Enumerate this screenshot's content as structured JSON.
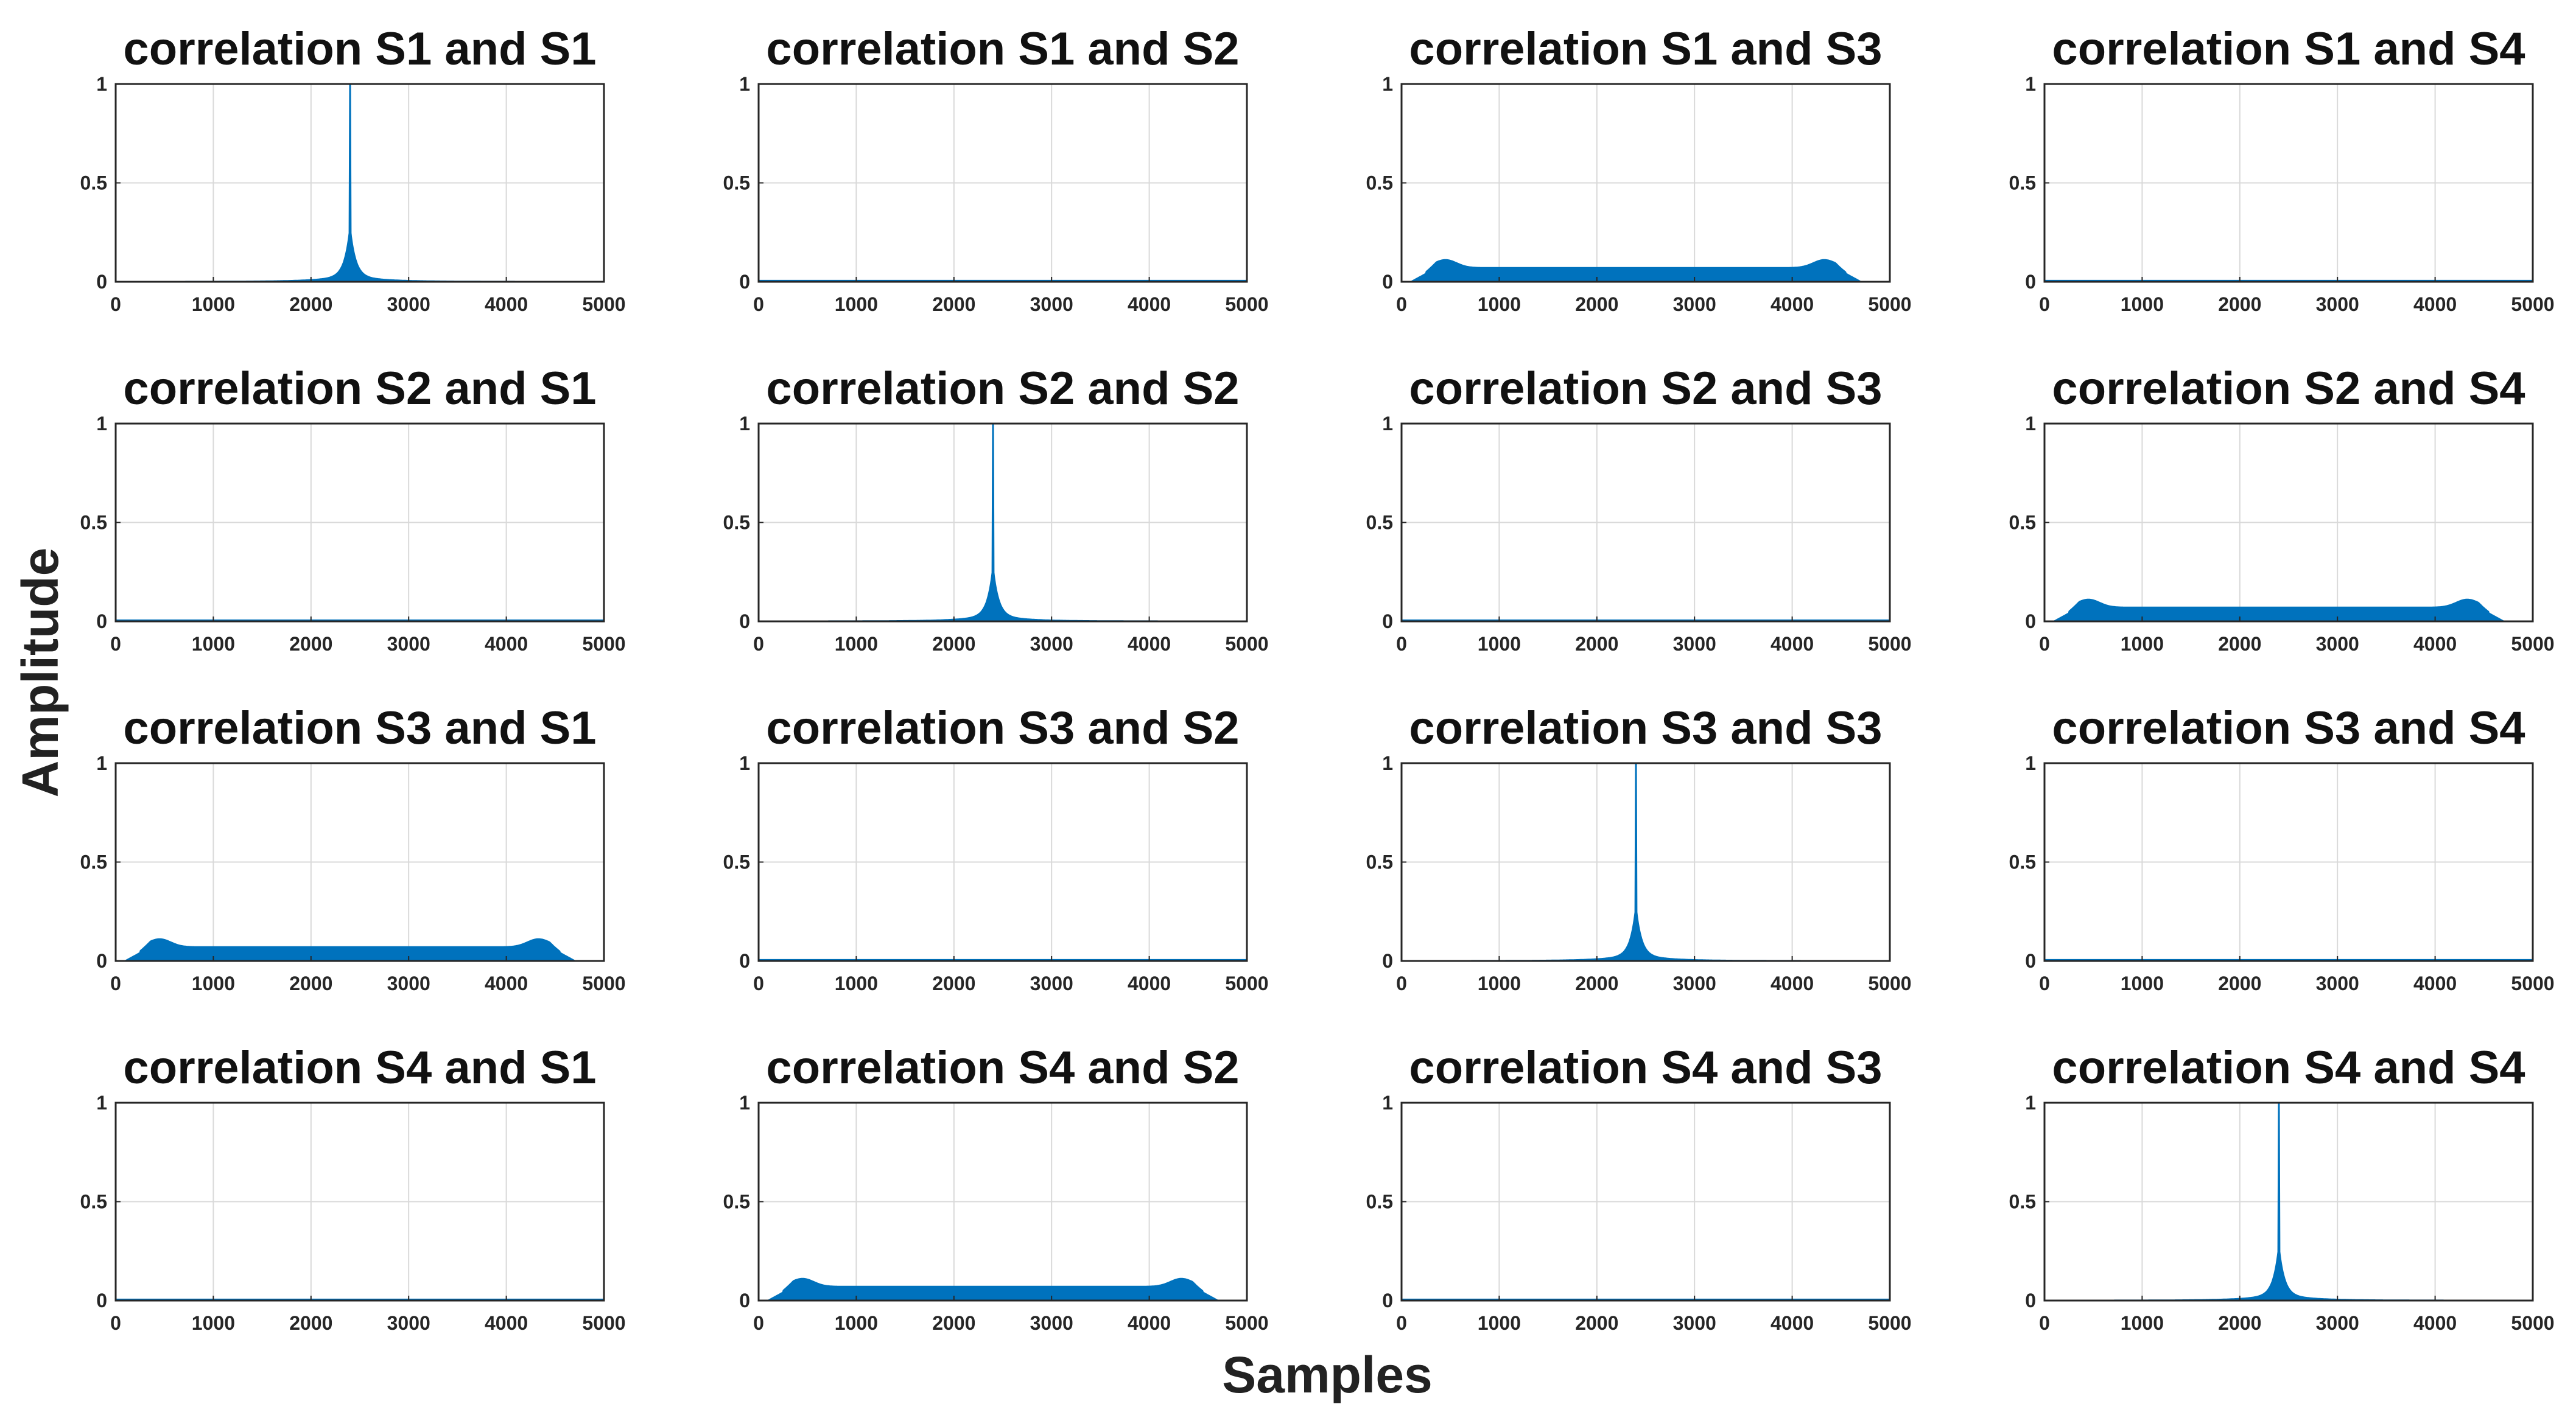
{
  "figure": {
    "ylabel": "Amplitude",
    "xlabel": "Samples",
    "series_color": "#0072BD",
    "grid_color": "#d9d9d9"
  },
  "chart_data": [
    {
      "type": "line",
      "row": 1,
      "col": 1,
      "title": "correlation S1 and S1",
      "shape": "peak",
      "peak_x": 2400,
      "peak_y": 1.0,
      "xlim": [
        0,
        5000
      ],
      "ylim": [
        0,
        1
      ],
      "xticks": [
        "0",
        "1000",
        "2000",
        "3000",
        "4000",
        "5000"
      ],
      "yticks": [
        "0",
        "0.5",
        "1"
      ],
      "grid": true
    },
    {
      "type": "line",
      "row": 1,
      "col": 2,
      "title": "correlation S1 and S2",
      "shape": "flat",
      "level": 0.005,
      "xlim": [
        0,
        5000
      ],
      "ylim": [
        0,
        1
      ],
      "xticks": [
        "0",
        "1000",
        "2000",
        "3000",
        "4000",
        "5000"
      ],
      "yticks": [
        "0",
        "0.5",
        "1"
      ],
      "grid": true
    },
    {
      "type": "line",
      "row": 1,
      "col": 3,
      "title": "correlation S1 and S3",
      "shape": "plateau",
      "level": 0.07,
      "edge_max": 0.11,
      "start_x": 100,
      "end_x": 4700,
      "xlim": [
        0,
        5000
      ],
      "ylim": [
        0,
        1
      ],
      "xticks": [
        "0",
        "1000",
        "2000",
        "3000",
        "4000",
        "5000"
      ],
      "yticks": [
        "0",
        "0.5",
        "1"
      ],
      "grid": true
    },
    {
      "type": "line",
      "row": 1,
      "col": 4,
      "title": "correlation S1 and S4",
      "shape": "flat",
      "level": 0.005,
      "xlim": [
        0,
        5000
      ],
      "ylim": [
        0,
        1
      ],
      "xticks": [
        "0",
        "1000",
        "2000",
        "3000",
        "4000",
        "5000"
      ],
      "yticks": [
        "0",
        "0.5",
        "1"
      ],
      "grid": true
    },
    {
      "type": "line",
      "row": 2,
      "col": 1,
      "title": "correlation S2 and S1",
      "shape": "flat",
      "level": 0.005,
      "xlim": [
        0,
        5000
      ],
      "ylim": [
        0,
        1
      ],
      "xticks": [
        "0",
        "1000",
        "2000",
        "3000",
        "4000",
        "5000"
      ],
      "yticks": [
        "0",
        "0.5",
        "1"
      ],
      "grid": true
    },
    {
      "type": "line",
      "row": 2,
      "col": 2,
      "title": "correlation S2 and S2",
      "shape": "peak",
      "peak_x": 2400,
      "peak_y": 1.0,
      "xlim": [
        0,
        5000
      ],
      "ylim": [
        0,
        1
      ],
      "xticks": [
        "0",
        "1000",
        "2000",
        "3000",
        "4000",
        "5000"
      ],
      "yticks": [
        "0",
        "0.5",
        "1"
      ],
      "grid": true
    },
    {
      "type": "line",
      "row": 2,
      "col": 3,
      "title": "correlation S2 and S3",
      "shape": "flat",
      "level": 0.005,
      "xlim": [
        0,
        5000
      ],
      "ylim": [
        0,
        1
      ],
      "xticks": [
        "0",
        "1000",
        "2000",
        "3000",
        "4000",
        "5000"
      ],
      "yticks": [
        "0",
        "0.5",
        "1"
      ],
      "grid": true
    },
    {
      "type": "line",
      "row": 2,
      "col": 4,
      "title": "correlation S2 and S4",
      "shape": "plateau",
      "level": 0.07,
      "edge_max": 0.11,
      "start_x": 100,
      "end_x": 4700,
      "xlim": [
        0,
        5000
      ],
      "ylim": [
        0,
        1
      ],
      "xticks": [
        "0",
        "1000",
        "2000",
        "3000",
        "4000",
        "5000"
      ],
      "yticks": [
        "0",
        "0.5",
        "1"
      ],
      "grid": true
    },
    {
      "type": "line",
      "row": 3,
      "col": 1,
      "title": "correlation S3 and S1",
      "shape": "plateau",
      "level": 0.07,
      "edge_max": 0.11,
      "start_x": 100,
      "end_x": 4700,
      "xlim": [
        0,
        5000
      ],
      "ylim": [
        0,
        1
      ],
      "xticks": [
        "0",
        "1000",
        "2000",
        "3000",
        "4000",
        "5000"
      ],
      "yticks": [
        "0",
        "0.5",
        "1"
      ],
      "grid": true
    },
    {
      "type": "line",
      "row": 3,
      "col": 2,
      "title": "correlation S3 and S2",
      "shape": "flat",
      "level": 0.005,
      "xlim": [
        0,
        5000
      ],
      "ylim": [
        0,
        1
      ],
      "xticks": [
        "0",
        "1000",
        "2000",
        "3000",
        "4000",
        "5000"
      ],
      "yticks": [
        "0",
        "0.5",
        "1"
      ],
      "grid": true
    },
    {
      "type": "line",
      "row": 3,
      "col": 3,
      "title": "correlation S3 and S3",
      "shape": "peak",
      "peak_x": 2400,
      "peak_y": 1.0,
      "xlim": [
        0,
        5000
      ],
      "ylim": [
        0,
        1
      ],
      "xticks": [
        "0",
        "1000",
        "2000",
        "3000",
        "4000",
        "5000"
      ],
      "yticks": [
        "0",
        "0.5",
        "1"
      ],
      "grid": true
    },
    {
      "type": "line",
      "row": 3,
      "col": 4,
      "title": "correlation S3 and S4",
      "shape": "flat",
      "level": 0.005,
      "xlim": [
        0,
        5000
      ],
      "ylim": [
        0,
        1
      ],
      "xticks": [
        "0",
        "1000",
        "2000",
        "3000",
        "4000",
        "5000"
      ],
      "yticks": [
        "0",
        "0.5",
        "1"
      ],
      "grid": true
    },
    {
      "type": "line",
      "row": 4,
      "col": 1,
      "title": "correlation S4 and S1",
      "shape": "flat",
      "level": 0.005,
      "xlim": [
        0,
        5000
      ],
      "ylim": [
        0,
        1
      ],
      "xticks": [
        "0",
        "1000",
        "2000",
        "3000",
        "4000",
        "5000"
      ],
      "yticks": [
        "0",
        "0.5",
        "1"
      ],
      "grid": true
    },
    {
      "type": "line",
      "row": 4,
      "col": 2,
      "title": "correlation S4 and S2",
      "shape": "plateau",
      "level": 0.07,
      "edge_max": 0.11,
      "start_x": 100,
      "end_x": 4700,
      "xlim": [
        0,
        5000
      ],
      "ylim": [
        0,
        1
      ],
      "xticks": [
        "0",
        "1000",
        "2000",
        "3000",
        "4000",
        "5000"
      ],
      "yticks": [
        "0",
        "0.5",
        "1"
      ],
      "grid": true
    },
    {
      "type": "line",
      "row": 4,
      "col": 3,
      "title": "correlation S4 and S3",
      "shape": "flat",
      "level": 0.005,
      "xlim": [
        0,
        5000
      ],
      "ylim": [
        0,
        1
      ],
      "xticks": [
        "0",
        "1000",
        "2000",
        "3000",
        "4000",
        "5000"
      ],
      "yticks": [
        "0",
        "0.5",
        "1"
      ],
      "grid": true
    },
    {
      "type": "line",
      "row": 4,
      "col": 4,
      "title": "correlation S4 and S4",
      "shape": "peak",
      "peak_x": 2400,
      "peak_y": 1.0,
      "xlim": [
        0,
        5000
      ],
      "ylim": [
        0,
        1
      ],
      "xticks": [
        "0",
        "1000",
        "2000",
        "3000",
        "4000",
        "5000"
      ],
      "yticks": [
        "0",
        "0.5",
        "1"
      ],
      "grid": true
    }
  ]
}
